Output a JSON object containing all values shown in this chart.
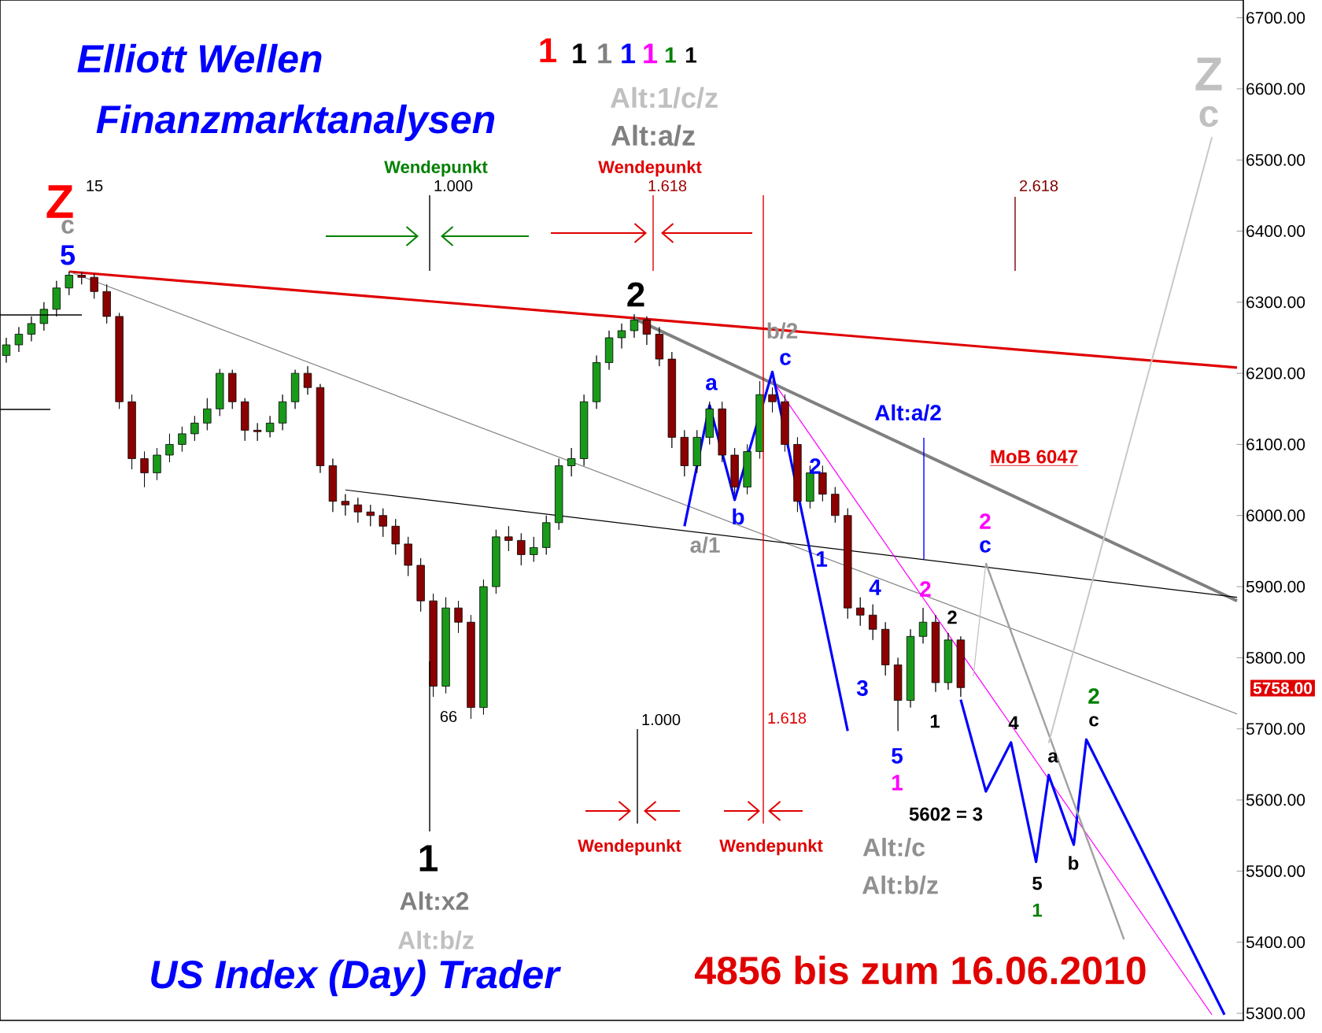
{
  "chart_data": {
    "type": "candlestick",
    "title": "Elliott Wellen",
    "subtitle": "Finanzmarktanalysen",
    "categories": [
      null,
      null,
      null,
      null,
      null,
      null,
      null,
      null,
      null,
      null,
      null,
      null,
      null,
      null,
      null,
      null,
      null,
      null,
      null,
      null,
      null,
      null,
      null,
      null,
      null,
      null,
      null,
      null,
      null,
      null,
      null,
      null,
      null,
      null,
      null,
      null,
      null,
      null,
      null,
      null,
      null,
      null,
      null,
      null,
      null,
      null,
      null,
      null,
      null,
      null,
      null,
      null,
      null,
      null,
      null,
      null,
      null,
      null,
      null,
      null,
      null,
      null,
      null,
      null,
      null,
      null,
      null,
      null,
      null,
      null,
      null,
      null,
      null,
      null,
      null,
      null,
      null,
      null,
      null,
      null,
      null,
      null,
      null,
      null,
      null,
      null,
      null,
      null,
      null,
      null,
      null,
      null,
      null,
      null,
      null,
      null,
      null,
      null,
      null
    ],
    "ohlc": [
      [
        6225,
        6250,
        6215,
        6240
      ],
      [
        6240,
        6265,
        6230,
        6255
      ],
      [
        6255,
        6280,
        6245,
        6270
      ],
      [
        6270,
        6300,
        6260,
        6290
      ],
      [
        6290,
        6330,
        6280,
        6320
      ],
      [
        6320,
        6343,
        6310,
        6338
      ],
      [
        6338,
        6343,
        6325,
        6335
      ],
      [
        6335,
        6340,
        6305,
        6315
      ],
      [
        6315,
        6325,
        6270,
        6280
      ],
      [
        6280,
        6285,
        6150,
        6160
      ],
      [
        6160,
        6170,
        6065,
        6080
      ],
      [
        6080,
        6090,
        6040,
        6060
      ],
      [
        6060,
        6095,
        6050,
        6085
      ],
      [
        6085,
        6115,
        6075,
        6100
      ],
      [
        6100,
        6125,
        6090,
        6115
      ],
      [
        6115,
        6140,
        6105,
        6130
      ],
      [
        6130,
        6165,
        6120,
        6150
      ],
      [
        6150,
        6206,
        6140,
        6200
      ],
      [
        6200,
        6205,
        6150,
        6160
      ],
      [
        6160,
        6165,
        6105,
        6120
      ],
      [
        6120,
        6130,
        6105,
        6118
      ],
      [
        6118,
        6140,
        6110,
        6130
      ],
      [
        6130,
        6170,
        6120,
        6160
      ],
      [
        6160,
        6205,
        6150,
        6200
      ],
      [
        6200,
        6210,
        6170,
        6180
      ],
      [
        6180,
        6185,
        6060,
        6070
      ],
      [
        6070,
        6080,
        6005,
        6020
      ],
      [
        6020,
        6030,
        6000,
        6015
      ],
      [
        6015,
        6025,
        5990,
        6005
      ],
      [
        6005,
        6015,
        5985,
        6000
      ],
      [
        6000,
        6010,
        5970,
        5985
      ],
      [
        5985,
        5995,
        5945,
        5960
      ],
      [
        5960,
        5970,
        5915,
        5930
      ],
      [
        5930,
        5940,
        5865,
        5880
      ],
      [
        5880,
        5890,
        5745,
        5760
      ],
      [
        5760,
        5885,
        5750,
        5870
      ],
      [
        5870,
        5880,
        5835,
        5850
      ],
      [
        5850,
        5860,
        5714,
        5730
      ],
      [
        5730,
        5910,
        5720,
        5900
      ],
      [
        5900,
        5980,
        5890,
        5970
      ],
      [
        5970,
        5985,
        5950,
        5965
      ],
      [
        5965,
        5975,
        5930,
        5945
      ],
      [
        5945,
        5970,
        5935,
        5955
      ],
      [
        5955,
        6000,
        5945,
        5990
      ],
      [
        5990,
        6080,
        5980,
        6070
      ],
      [
        6070,
        6095,
        6055,
        6080
      ],
      [
        6080,
        6170,
        6070,
        6160
      ],
      [
        6160,
        6225,
        6150,
        6215
      ],
      [
        6215,
        6260,
        6205,
        6250
      ],
      [
        6250,
        6270,
        6235,
        6260
      ],
      [
        6260,
        6283,
        6250,
        6275
      ],
      [
        6275,
        6280,
        6240,
        6255
      ],
      [
        6255,
        6265,
        6210,
        6220
      ],
      [
        6220,
        6230,
        6095,
        6110
      ],
      [
        6110,
        6120,
        6055,
        6070
      ],
      [
        6070,
        6120,
        6060,
        6110
      ],
      [
        6110,
        6160,
        6100,
        6150
      ],
      [
        6150,
        6160,
        6075,
        6085
      ],
      [
        6085,
        6095,
        6030,
        6040
      ],
      [
        6040,
        6100,
        6030,
        6090
      ],
      [
        6090,
        6189,
        6080,
        6170
      ],
      [
        6170,
        6180,
        6145,
        6160
      ],
      [
        6160,
        6170,
        6090,
        6100
      ],
      [
        6100,
        6110,
        6005,
        6020
      ],
      [
        6020,
        6070,
        6010,
        6060
      ],
      [
        6060,
        6070,
        6020,
        6030
      ],
      [
        6030,
        6040,
        5990,
        6000
      ],
      [
        6000,
        6010,
        5855,
        5870
      ],
      [
        5870,
        5885,
        5845,
        5860
      ],
      [
        5860,
        5875,
        5825,
        5840
      ],
      [
        5840,
        5850,
        5775,
        5790
      ],
      [
        5790,
        5800,
        5697,
        5740
      ],
      [
        5740,
        5840,
        5730,
        5830
      ],
      [
        5830,
        5870,
        5820,
        5850
      ],
      [
        5850,
        5860,
        5752,
        5765
      ],
      [
        5765,
        5835,
        5755,
        5825
      ],
      [
        5825,
        5830,
        5745,
        5758
      ],
      null,
      null,
      null,
      null,
      null,
      null,
      null,
      null,
      null,
      null,
      null,
      null,
      null,
      null,
      null,
      null,
      null,
      null,
      null,
      null,
      null,
      null
    ],
    "series": [
      {
        "type": "line",
        "color": "#e00000",
        "values": [
          null,
          null,
          null,
          null,
          null,
          6343,
          null,
          null,
          null,
          null,
          null,
          null,
          null,
          null,
          null,
          null,
          null,
          null,
          null,
          null,
          null,
          null,
          null,
          null,
          null,
          null,
          null,
          null,
          null,
          null,
          null,
          null,
          null,
          null,
          null,
          null,
          null,
          null,
          null,
          null,
          null,
          null,
          null,
          null,
          null,
          null,
          null,
          null,
          null,
          null,
          null,
          null,
          null,
          null,
          null,
          null,
          null,
          null,
          null,
          null,
          null,
          null,
          null,
          null,
          null,
          null,
          null,
          null,
          null,
          null,
          null,
          null,
          null,
          null,
          null,
          null,
          null,
          null,
          null,
          null,
          null,
          null,
          null,
          null,
          null,
          null,
          null,
          null,
          null,
          null,
          null,
          null,
          null,
          null,
          null,
          null,
          null,
          null,
          6208
        ]
      },
      {
        "type": "line",
        "color": "#808080",
        "values": [
          null,
          null,
          null,
          null,
          null,
          null,
          null,
          null,
          null,
          null,
          null,
          null,
          null,
          null,
          null,
          null,
          null,
          null,
          null,
          null,
          null,
          null,
          null,
          null,
          null,
          null,
          null,
          null,
          null,
          null,
          null,
          null,
          null,
          null,
          null,
          null,
          null,
          null,
          null,
          null,
          null,
          null,
          null,
          null,
          null,
          null,
          null,
          null,
          null,
          null,
          6277,
          null,
          null,
          null,
          null,
          null,
          null,
          null,
          null,
          null,
          null,
          null,
          null,
          null,
          null,
          null,
          null,
          null,
          null,
          null,
          null,
          null,
          null,
          null,
          null,
          null,
          null,
          null,
          null,
          null,
          null,
          null,
          null,
          null,
          null,
          null,
          null,
          null,
          null,
          null,
          null,
          null,
          null,
          null,
          null,
          null,
          null,
          null,
          5880
        ]
      },
      {
        "type": "line",
        "color": "#808080",
        "values": [
          null,
          null,
          null,
          null,
          null,
          6343,
          null,
          null,
          null,
          null,
          null,
          null,
          null,
          null,
          null,
          null,
          null,
          null,
          null,
          null,
          null,
          null,
          null,
          null,
          null,
          null,
          null,
          null,
          null,
          null,
          null,
          null,
          null,
          null,
          null,
          null,
          null,
          null,
          null,
          null,
          null,
          null,
          null,
          null,
          null,
          null,
          null,
          null,
          null,
          null,
          null,
          null,
          null,
          null,
          null,
          null,
          null,
          null,
          null,
          null,
          null,
          null,
          null,
          null,
          null,
          null,
          null,
          null,
          null,
          null,
          null,
          null,
          null,
          null,
          null,
          null,
          null,
          null,
          null,
          null,
          null,
          null,
          null,
          null,
          null,
          null,
          null,
          null,
          null,
          null,
          null,
          null,
          null,
          null,
          null,
          null,
          null,
          null,
          5721
        ]
      },
      {
        "type": "line",
        "color": "#000000",
        "values": [
          null,
          null,
          null,
          null,
          null,
          null,
          null,
          null,
          null,
          null,
          null,
          null,
          null,
          null,
          null,
          null,
          null,
          null,
          null,
          null,
          null,
          null,
          null,
          null,
          null,
          null,
          null,
          6036,
          null,
          null,
          null,
          null,
          null,
          null,
          null,
          null,
          null,
          null,
          null,
          null,
          null,
          null,
          null,
          null,
          null,
          null,
          null,
          null,
          null,
          null,
          null,
          null,
          null,
          null,
          null,
          null,
          null,
          null,
          null,
          null,
          null,
          null,
          null,
          null,
          null,
          null,
          null,
          null,
          null,
          null,
          null,
          null,
          null,
          null,
          null,
          null,
          null,
          null,
          null,
          null,
          null,
          null,
          null,
          null,
          null,
          null,
          null,
          null,
          null,
          null,
          null,
          null,
          null,
          null,
          null,
          null,
          null,
          null,
          5885
        ]
      },
      {
        "type": "line",
        "color": "#ff00ff",
        "values": [
          null,
          null,
          null,
          null,
          null,
          null,
          null,
          null,
          null,
          null,
          null,
          null,
          null,
          null,
          null,
          null,
          null,
          null,
          null,
          null,
          null,
          null,
          null,
          null,
          null,
          null,
          null,
          null,
          null,
          null,
          null,
          null,
          null,
          null,
          null,
          null,
          null,
          null,
          null,
          null,
          null,
          null,
          null,
          null,
          null,
          null,
          null,
          null,
          null,
          null,
          null,
          null,
          null,
          null,
          null,
          null,
          null,
          null,
          null,
          null,
          null,
          6190,
          null,
          null,
          null,
          null,
          null,
          null,
          null,
          null,
          null,
          null,
          null,
          null,
          null,
          null,
          null,
          null,
          null,
          null,
          null,
          null,
          null,
          null,
          null,
          null,
          null,
          null,
          null,
          null,
          null,
          null,
          null,
          null,
          null,
          null,
          5298,
          null,
          null
        ]
      },
      {
        "type": "line",
        "color": "#0000ff",
        "values": [
          null,
          null,
          null,
          null,
          null,
          null,
          null,
          null,
          null,
          null,
          null,
          null,
          null,
          null,
          null,
          null,
          null,
          null,
          null,
          null,
          null,
          null,
          null,
          null,
          null,
          null,
          null,
          null,
          null,
          null,
          null,
          null,
          null,
          null,
          null,
          null,
          null,
          null,
          null,
          null,
          null,
          null,
          null,
          null,
          null,
          null,
          null,
          null,
          null,
          null,
          null,
          null,
          null,
          null,
          5985,
          null,
          6155,
          null,
          6022,
          null,
          null,
          6202,
          null,
          null,
          null,
          null,
          null,
          5697,
          null,
          null,
          null,
          null,
          null,
          null,
          null,
          null,
          null,
          null,
          null,
          null,
          null,
          null,
          null,
          null,
          null,
          null,
          null,
          null,
          null,
          null,
          null,
          null,
          null,
          null,
          null,
          null,
          null,
          null,
          null
        ]
      },
      {
        "type": "line",
        "color": "#0000ff",
        "values": [
          null,
          null,
          null,
          null,
          null,
          null,
          null,
          null,
          null,
          null,
          null,
          null,
          null,
          null,
          null,
          null,
          null,
          null,
          null,
          null,
          null,
          null,
          null,
          null,
          null,
          null,
          null,
          null,
          null,
          null,
          null,
          null,
          null,
          null,
          null,
          null,
          null,
          null,
          null,
          null,
          null,
          null,
          null,
          null,
          null,
          null,
          null,
          null,
          null,
          null,
          null,
          null,
          null,
          null,
          null,
          null,
          null,
          null,
          null,
          null,
          null,
          null,
          null,
          null,
          null,
          null,
          null,
          null,
          null,
          null,
          null,
          null,
          null,
          null,
          null,
          null,
          5741,
          null,
          5612,
          null,
          5681,
          null,
          5513,
          5635,
          null,
          5537,
          5685,
          null,
          null,
          null,
          null,
          null,
          null,
          null,
          null,
          null,
          null,
          5298,
          null
        ]
      },
      {
        "type": "line",
        "color": "#c0c0c0",
        "values": [
          null,
          null,
          null,
          null,
          null,
          null,
          null,
          null,
          null,
          null,
          null,
          null,
          null,
          null,
          null,
          null,
          null,
          null,
          null,
          null,
          null,
          null,
          null,
          null,
          null,
          null,
          null,
          null,
          null,
          null,
          null,
          null,
          null,
          null,
          null,
          null,
          null,
          null,
          null,
          null,
          null,
          null,
          null,
          null,
          null,
          null,
          null,
          null,
          null,
          null,
          null,
          null,
          null,
          null,
          null,
          null,
          null,
          null,
          null,
          null,
          null,
          null,
          null,
          null,
          null,
          null,
          null,
          null,
          null,
          null,
          null,
          null,
          null,
          null,
          null,
          null,
          null,
          5774,
          5933,
          null,
          null,
          null,
          null,
          null,
          null,
          null,
          null,
          null,
          null,
          null,
          null,
          null,
          null,
          null,
          null,
          null,
          null,
          null,
          null
        ]
      },
      {
        "type": "line",
        "color": "#a0a0a0",
        "values": [
          null,
          null,
          null,
          null,
          null,
          null,
          null,
          null,
          null,
          null,
          null,
          null,
          null,
          null,
          null,
          null,
          null,
          null,
          null,
          null,
          null,
          null,
          null,
          null,
          null,
          null,
          null,
          null,
          null,
          null,
          null,
          null,
          null,
          null,
          null,
          null,
          null,
          null,
          null,
          null,
          null,
          null,
          null,
          null,
          null,
          null,
          null,
          null,
          null,
          null,
          null,
          null,
          null,
          null,
          null,
          null,
          null,
          null,
          null,
          null,
          null,
          null,
          null,
          null,
          null,
          null,
          null,
          null,
          null,
          null,
          null,
          null,
          null,
          null,
          null,
          null,
          null,
          null,
          5933,
          null,
          null,
          null,
          null,
          null,
          null,
          null,
          null,
          null,
          null,
          5404,
          null,
          null,
          null,
          null,
          null,
          null,
          null,
          null,
          null
        ]
      },
      {
        "type": "line",
        "color": "#c8c8c8",
        "values": [
          null,
          null,
          null,
          null,
          null,
          null,
          null,
          null,
          null,
          null,
          null,
          null,
          null,
          null,
          null,
          null,
          null,
          null,
          null,
          null,
          null,
          null,
          null,
          null,
          null,
          null,
          null,
          null,
          null,
          null,
          null,
          null,
          null,
          null,
          null,
          null,
          null,
          null,
          null,
          null,
          null,
          null,
          null,
          null,
          null,
          null,
          null,
          null,
          null,
          null,
          null,
          null,
          null,
          null,
          null,
          null,
          null,
          null,
          null,
          null,
          null,
          null,
          null,
          null,
          null,
          null,
          null,
          null,
          null,
          null,
          null,
          null,
          null,
          null,
          null,
          null,
          null,
          null,
          null,
          null,
          null,
          null,
          null,
          5680,
          null,
          null,
          null,
          null,
          null,
          null,
          null,
          null,
          null,
          null,
          null,
          null,
          6532,
          null,
          null
        ]
      }
    ],
    "ylim": [
      5290,
      6725
    ],
    "yticks": [
      {
        "value": 5300,
        "label": "5300.00"
      },
      {
        "value": 5400,
        "label": "5400.00"
      },
      {
        "value": 5500,
        "label": "5500.00"
      },
      {
        "value": 5600,
        "label": "5600.00"
      },
      {
        "value": 5700,
        "label": "5700.00"
      },
      {
        "value": 5800,
        "label": "5800.00"
      },
      {
        "value": 5900,
        "label": "5900.00"
      },
      {
        "value": 6000,
        "label": "6000.00"
      },
      {
        "value": 6100,
        "label": "6100.00"
      },
      {
        "value": 6200,
        "label": "6200.00"
      },
      {
        "value": 6300,
        "label": "6300.00"
      },
      {
        "value": 6400,
        "label": "6400.00"
      },
      {
        "value": 6500,
        "label": "6500.00"
      },
      {
        "value": 6600,
        "label": "6600.00"
      },
      {
        "value": 6700,
        "label": "6700.00"
      }
    ],
    "tick_labels": "y",
    "annotations": [
      "1",
      "1",
      "1",
      "1",
      "1",
      "1",
      "1",
      "Alt:1/c/z",
      "Alt:a/z",
      "Wendepunkt",
      "1.000",
      "Wendepunkt",
      "1.618",
      "2.618",
      "Z",
      "15",
      "c",
      "5",
      "2",
      "b/2",
      "c",
      "a",
      "b",
      "a/1",
      "1",
      "2",
      "3",
      "4",
      "5",
      "1",
      "2",
      "2",
      "1",
      "Alt:a/2",
      "MoB 6047",
      "2",
      "c",
      "66",
      "1.000",
      "1.618",
      "Wendepunkt",
      "Wendepunkt",
      "4",
      "a",
      "5602 = 3",
      "5",
      "1",
      "b",
      "2",
      "c",
      "Alt:/c",
      "Alt:b/z",
      "1",
      "Alt:x2",
      "Alt:b/z",
      "Z",
      "c",
      "US Index (Day) Trader",
      "4856 bis zum 16.06.2010",
      "5758.00"
    ]
  }
}
